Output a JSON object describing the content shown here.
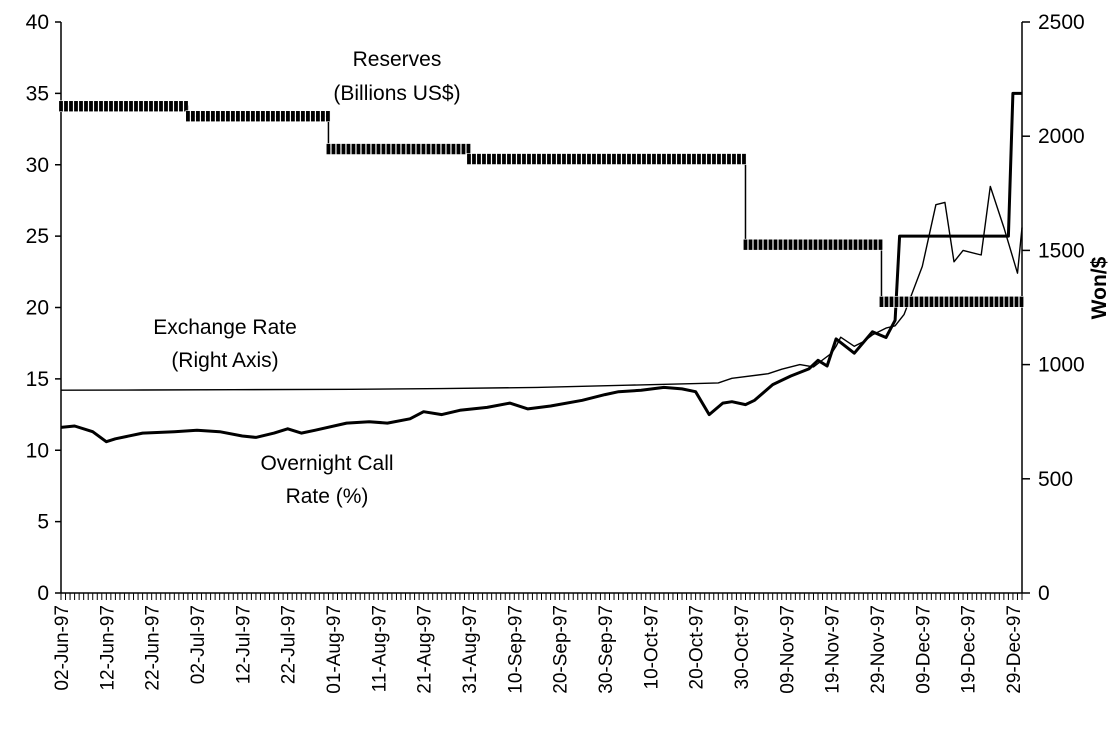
{
  "chart_data": {
    "type": "line",
    "title": "",
    "x_label_dates": [
      "02-Jun-97",
      "12-Jun-97",
      "22-Jun-97",
      "02-Jul-97",
      "12-Jul-97",
      "22-Jul-97",
      "01-Aug-97",
      "11-Aug-97",
      "21-Aug-97",
      "31-Aug-97",
      "10-Sep-97",
      "20-Sep-97",
      "30-Sep-97",
      "10-Oct-97",
      "20-Oct-97",
      "30-Oct-97",
      "09-Nov-97",
      "19-Nov-97",
      "29-Nov-97",
      "09-Dec-97",
      "19-Dec-97",
      "29-Dec-97"
    ],
    "x_range": [
      "1997-06-02",
      "1997-12-31"
    ],
    "left_axis": {
      "label": "",
      "min": 0,
      "max": 40,
      "ticks": [
        0,
        5,
        10,
        15,
        20,
        25,
        30,
        35,
        40
      ]
    },
    "right_axis": {
      "label": "Won/$",
      "min": 0,
      "max": 2500,
      "ticks": [
        0,
        500,
        1000,
        1500,
        2000,
        2500
      ]
    },
    "grid": false,
    "legend": "none",
    "annotations": {
      "reserves": [
        "Reserves",
        "(Billions US$)"
      ],
      "exchange_rate": [
        "Exchange Rate",
        "(Right Axis)"
      ],
      "call_rate": [
        "Overnight Call",
        "Rate (%)"
      ]
    },
    "series": [
      {
        "name": "Reserves",
        "axis": "left",
        "style": "step-marker",
        "x": [
          "1997-06-02",
          "1997-06-30",
          "1997-07-31",
          "1997-08-31",
          "1997-10-31",
          "1997-11-30",
          "1997-12-31"
        ],
        "values": [
          34.1,
          33.4,
          31.1,
          30.4,
          24.4,
          20.4,
          20.4
        ]
      },
      {
        "name": "Overnight Call Rate",
        "axis": "left",
        "style": "thick",
        "x": [
          "1997-06-02",
          "1997-06-05",
          "1997-06-09",
          "1997-06-12",
          "1997-06-14",
          "1997-06-20",
          "1997-06-27",
          "1997-07-02",
          "1997-07-07",
          "1997-07-12",
          "1997-07-15",
          "1997-07-19",
          "1997-07-22",
          "1997-07-25",
          "1997-07-28",
          "1997-08-04",
          "1997-08-09",
          "1997-08-13",
          "1997-08-18",
          "1997-08-21",
          "1997-08-25",
          "1997-08-29",
          "1997-09-04",
          "1997-09-09",
          "1997-09-13",
          "1997-09-18",
          "1997-09-25",
          "1997-09-30",
          "1997-10-03",
          "1997-10-08",
          "1997-10-13",
          "1997-10-17",
          "1997-10-20",
          "1997-10-23",
          "1997-10-26",
          "1997-10-28",
          "1997-10-31",
          "1997-11-02",
          "1997-11-06",
          "1997-11-10",
          "1997-11-14",
          "1997-11-16",
          "1997-11-18",
          "1997-11-20",
          "1997-11-24",
          "1997-11-28",
          "1997-12-01",
          "1997-12-03",
          "1997-12-04",
          "1997-12-15",
          "1997-12-22",
          "1997-12-28",
          "1997-12-29",
          "1997-12-31"
        ],
        "values": [
          11.6,
          11.7,
          11.3,
          10.6,
          10.8,
          11.2,
          11.3,
          11.4,
          11.3,
          11.0,
          10.9,
          11.2,
          11.5,
          11.2,
          11.4,
          11.9,
          12.0,
          11.9,
          12.2,
          12.7,
          12.5,
          12.8,
          13.0,
          13.3,
          12.9,
          13.1,
          13.5,
          13.9,
          14.1,
          14.2,
          14.4,
          14.3,
          14.1,
          12.5,
          13.3,
          13.4,
          13.2,
          13.5,
          14.6,
          15.2,
          15.7,
          16.3,
          15.9,
          17.8,
          16.8,
          18.3,
          17.9,
          19.1,
          25.0,
          25.0,
          25.0,
          25.0,
          35.0,
          35.0
        ]
      },
      {
        "name": "Exchange Rate",
        "axis": "right",
        "style": "thin",
        "x": [
          "1997-06-02",
          "1997-06-20",
          "1997-07-10",
          "1997-08-05",
          "1997-08-25",
          "1997-09-15",
          "1997-10-05",
          "1997-10-20",
          "1997-10-25",
          "1997-10-28",
          "1997-11-05",
          "1997-11-08",
          "1997-11-12",
          "1997-11-15",
          "1997-11-17",
          "1997-11-19",
          "1997-11-20",
          "1997-11-21",
          "1997-11-24",
          "1997-11-26",
          "1997-11-28",
          "1997-12-01",
          "1997-12-03",
          "1997-12-05",
          "1997-12-09",
          "1997-12-12",
          "1997-12-14",
          "1997-12-16",
          "1997-12-18",
          "1997-12-22",
          "1997-12-24",
          "1997-12-27",
          "1997-12-30",
          "1997-12-31"
        ],
        "values": [
          888,
          889,
          890,
          892,
          895,
          900,
          910,
          917,
          920,
          940,
          960,
          980,
          1000,
          990,
          1020,
          1050,
          1080,
          1120,
          1080,
          1100,
          1130,
          1160,
          1170,
          1220,
          1430,
          1700,
          1710,
          1450,
          1500,
          1480,
          1780,
          1600,
          1400,
          1600
        ]
      }
    ]
  }
}
